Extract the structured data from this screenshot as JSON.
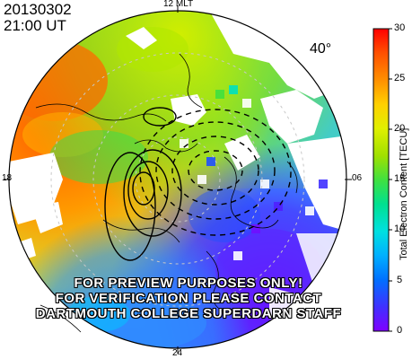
{
  "header": {
    "date": "20130302",
    "time": "21:00 UT"
  },
  "mlt_labels": {
    "top": "12 MLT",
    "left": "18",
    "right": "06",
    "bottom": "24"
  },
  "latitude_label": "40°",
  "watermark": {
    "line1": "FOR PREVIEW PURPOSES ONLY!",
    "line2": "FOR VERIFICATION PLEASE CONTACT",
    "line3": "DARTMOUTH COLLEGE SUPERDARN STAFF"
  },
  "colorbar": {
    "title": "Total Electron Content [TECU]",
    "min": 0,
    "max": 30,
    "ticks": [
      "30",
      "25",
      "20",
      "15",
      "10",
      "5",
      "0"
    ],
    "colormap": [
      "#8000ff",
      "#4030ff",
      "#0070ff",
      "#00b0ff",
      "#00e0e0",
      "#00e090",
      "#40e040",
      "#a0e000",
      "#e0f000",
      "#ffd000",
      "#ff9000",
      "#ff5000",
      "#ff0000"
    ]
  },
  "colors": {
    "frame": "#000000",
    "grid": "#bbbbbb",
    "contour": "#000000"
  }
}
